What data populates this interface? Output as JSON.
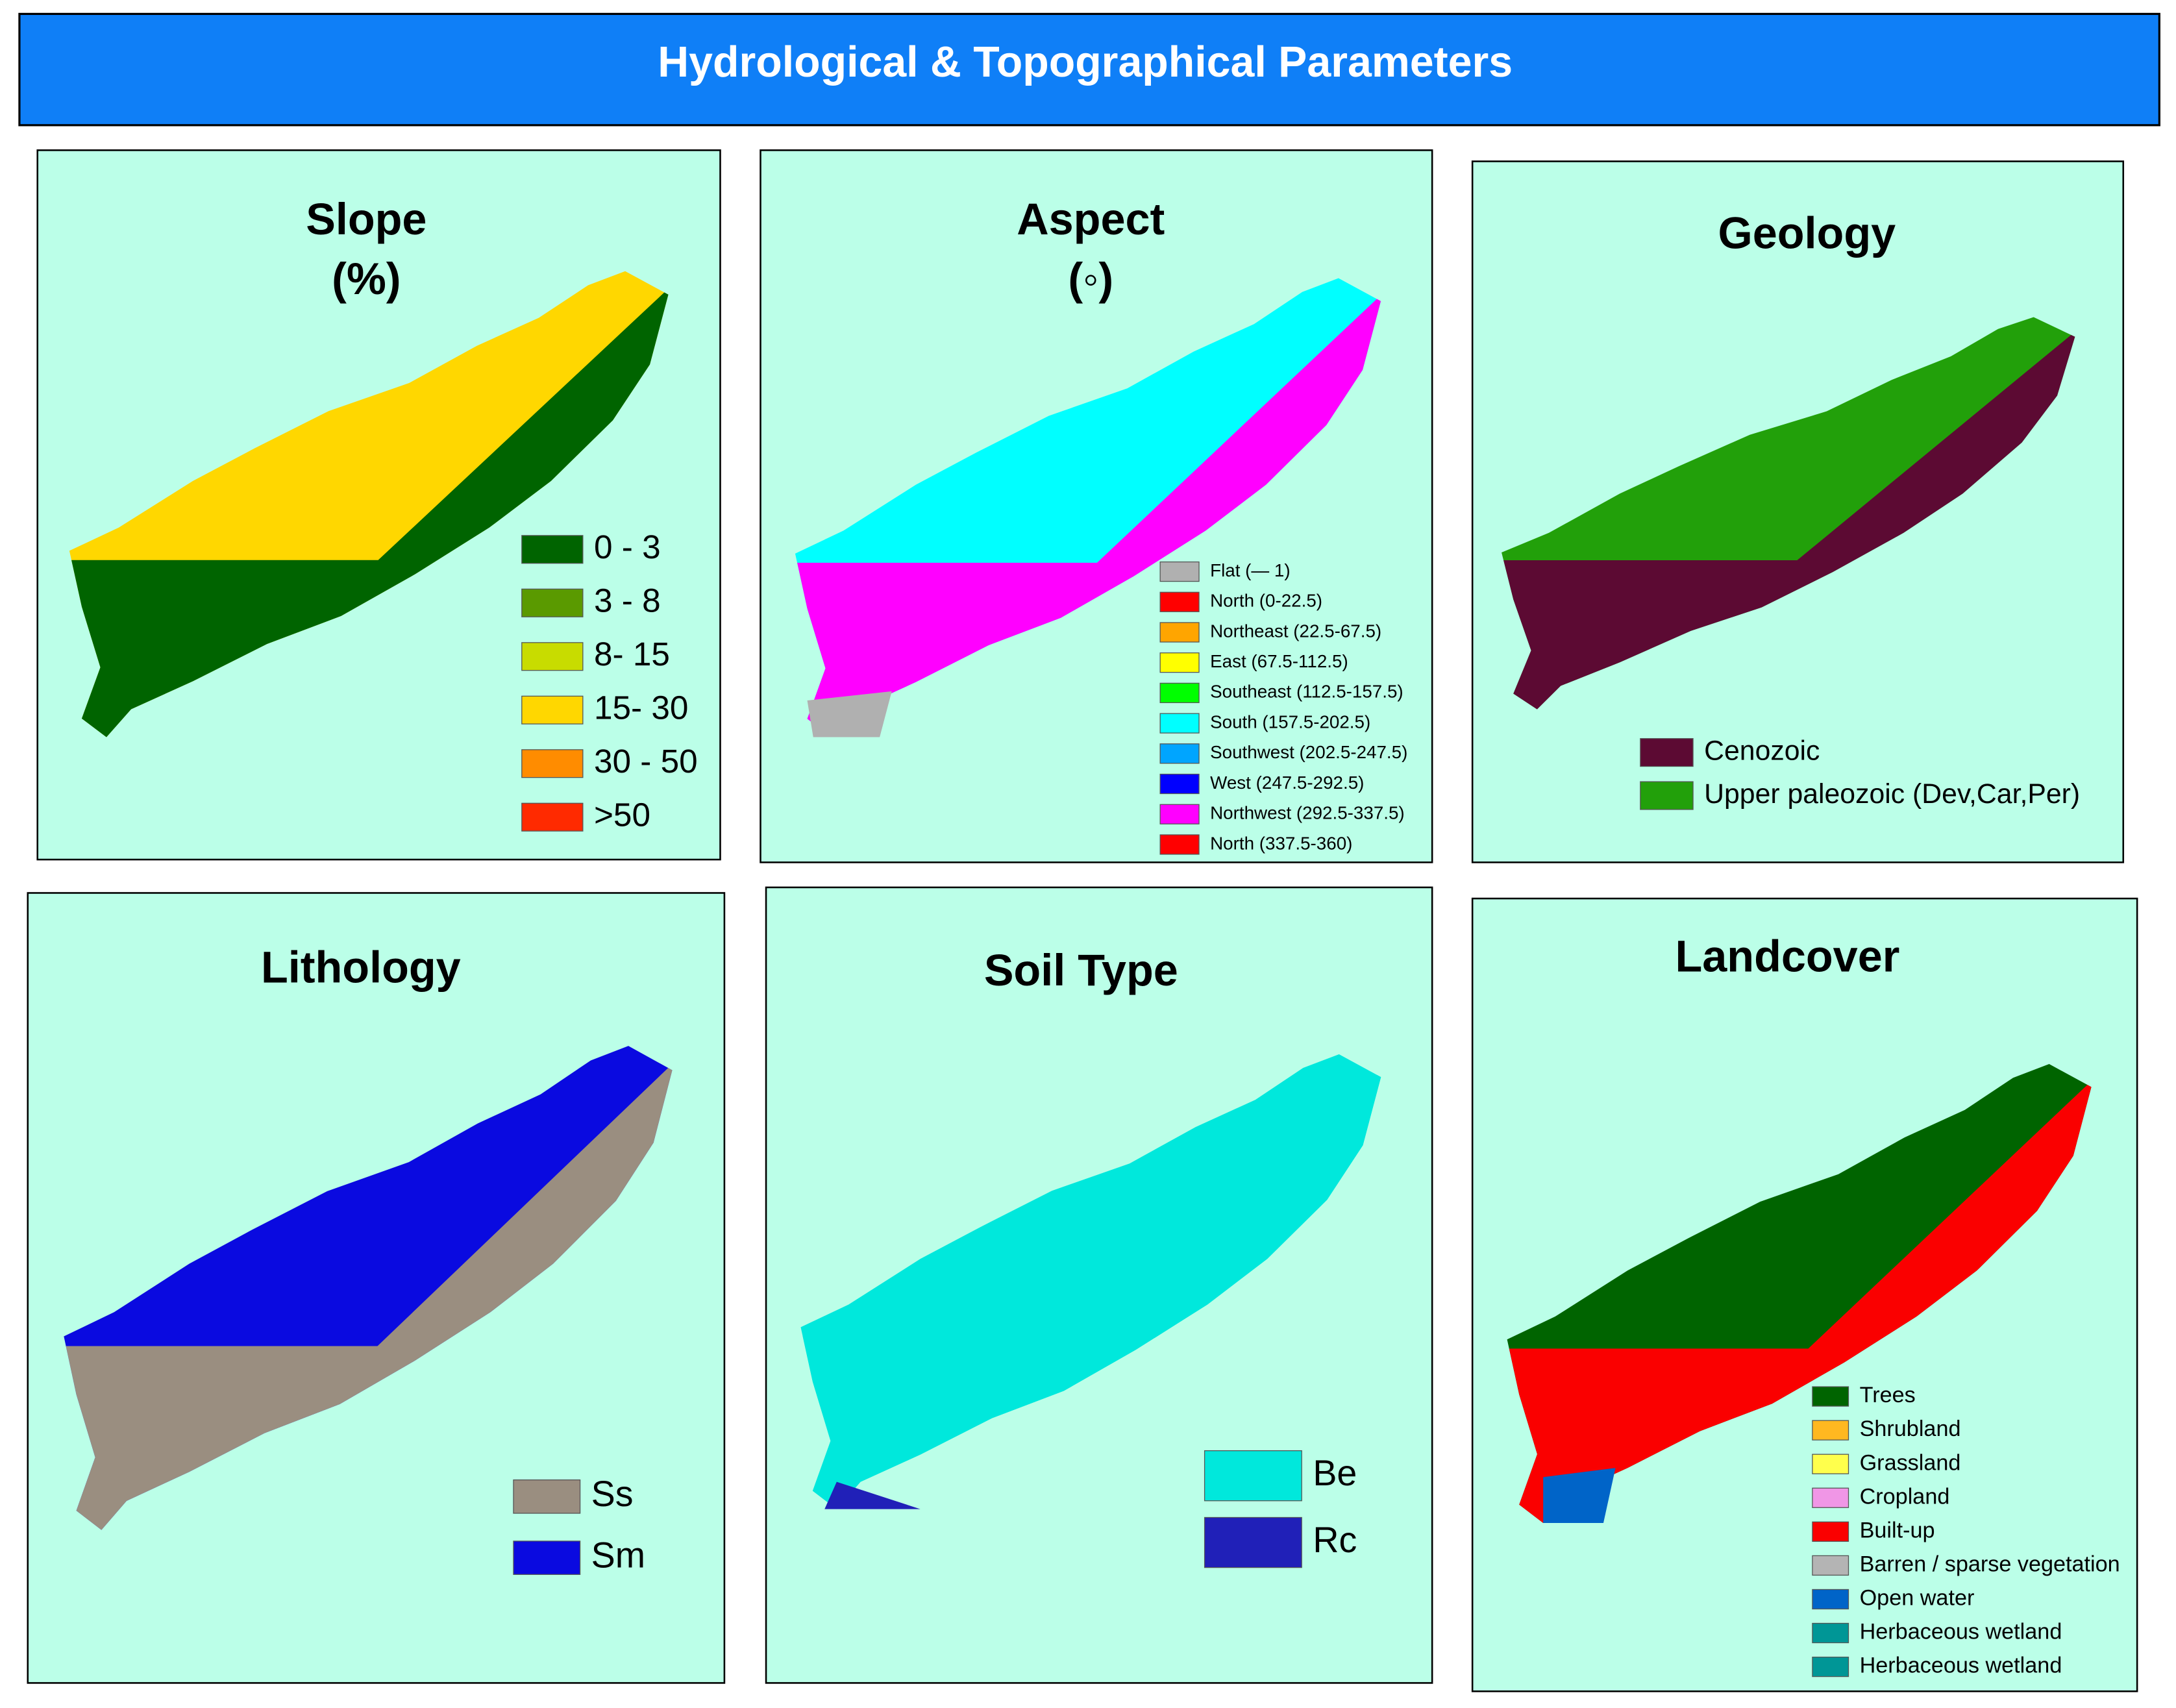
{
  "header": {
    "title": "Hydrological & Topographical Parameters"
  },
  "panels": [
    {
      "title": "Slope",
      "subtitle": "(%)",
      "legend": [
        {
          "label": "0 - 3",
          "color": "#006400"
        },
        {
          "label": "3 - 8",
          "color": "#5a9a00"
        },
        {
          "label": "8- 15",
          "color": "#c8dc00"
        },
        {
          "label": "15- 30",
          "color": "#ffd700"
        },
        {
          "label": "30 - 50",
          "color": "#ff8c00"
        },
        {
          "label": ">50",
          "color": "#ff2a00"
        }
      ]
    },
    {
      "title": "Aspect",
      "subtitle": "(◦)",
      "legend": [
        {
          "label": "Flat (— 1)",
          "color": "#b0b0b0"
        },
        {
          "label": "North (0-22.5)",
          "color": "#ff0000"
        },
        {
          "label": "Northeast (22.5-67.5)",
          "color": "#ffa500"
        },
        {
          "label": "East (67.5-112.5)",
          "color": "#ffff00"
        },
        {
          "label": "Southeast (112.5-157.5)",
          "color": "#00ff00"
        },
        {
          "label": "South (157.5-202.5)",
          "color": "#00ffff"
        },
        {
          "label": "Southwest (202.5-247.5)",
          "color": "#00a5ff"
        },
        {
          "label": "West (247.5-292.5)",
          "color": "#0000ff"
        },
        {
          "label": "Northwest (292.5-337.5)",
          "color": "#ff00ff"
        },
        {
          "label": "North (337.5-360)",
          "color": "#ff0000"
        }
      ]
    },
    {
      "title": "Geology",
      "legend": [
        {
          "label": "Cenozoic",
          "color": "#5c0a33"
        },
        {
          "label": "Upper paleozoic (Dev,Car,Per)",
          "color": "#22a00a"
        }
      ]
    },
    {
      "title": "Lithology",
      "legend": [
        {
          "label": "Ss",
          "color": "#9a8e80"
        },
        {
          "label": "Sm",
          "color": "#0a0ae0"
        }
      ]
    },
    {
      "title": "Soil Type",
      "legend": [
        {
          "label": "Be",
          "color": "#00e8dc"
        },
        {
          "label": "Rc",
          "color": "#2020b8"
        }
      ]
    },
    {
      "title": "Landcover",
      "legend": [
        {
          "label": "Trees",
          "color": "#006400"
        },
        {
          "label": "Shrubland",
          "color": "#ffb820"
        },
        {
          "label": "Grassland",
          "color": "#ffff4c"
        },
        {
          "label": "Cropland",
          "color": "#f096e6"
        },
        {
          "label": "Built-up",
          "color": "#fa0000"
        },
        {
          "label": "Barren / sparse vegetation",
          "color": "#b4b4b4"
        },
        {
          "label": "Open water",
          "color": "#0064c8"
        },
        {
          "label": "Herbaceous wetland",
          "color": "#009696"
        },
        {
          "label": "Herbaceous wetland",
          "color": "#009696"
        }
      ]
    }
  ]
}
